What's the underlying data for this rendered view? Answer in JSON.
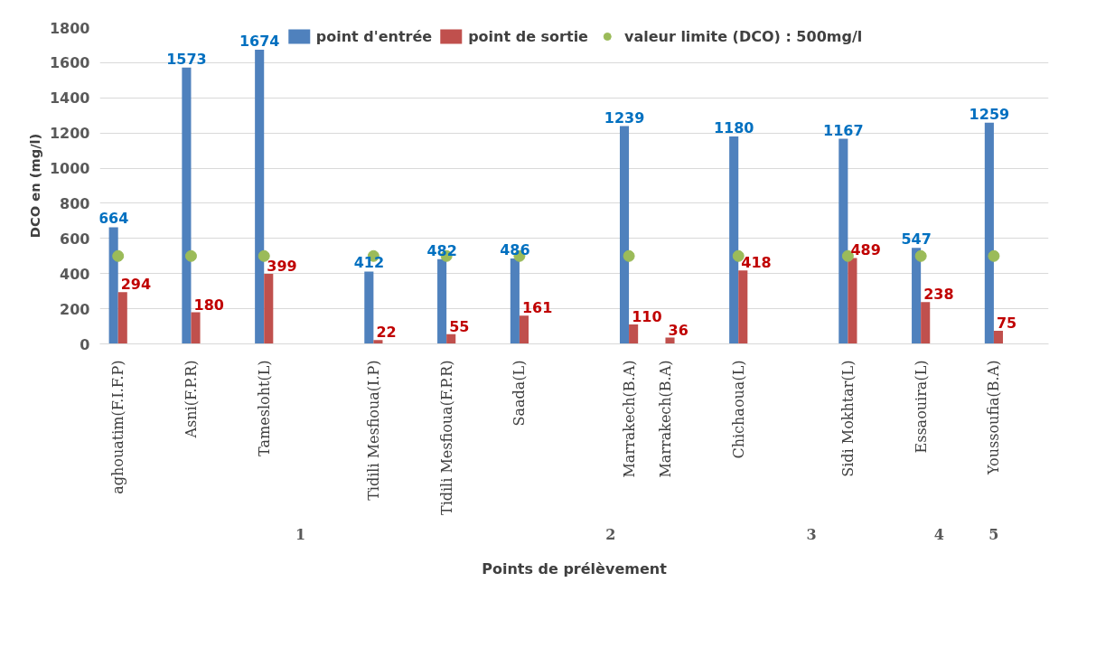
{
  "chart_data": {
    "type": "bar",
    "xlabel": "Points de prélèvement",
    "ylabel": "DCO en (mg/l)",
    "categories": [
      "aghouatim(F.I.F.P)",
      null,
      "Asni(F.P.R)",
      null,
      "Tamesloht(L)",
      null,
      null,
      "Tidili Mesfioua(I.P)",
      null,
      "Tidili Mesfioua(F.P.R)",
      null,
      "Saada(L)",
      null,
      null,
      "Marrakech(B.A)",
      "Marrakech(B.A)",
      null,
      "Chichaoua(L)",
      null,
      null,
      "Sidi Mokhtar(L)",
      null,
      "Essaouira(L)",
      null,
      "Youssoufia(B.A)",
      null
    ],
    "series": [
      {
        "name": "point d'entrée",
        "color": "#4f81bd",
        "values": [
          664,
          null,
          1573,
          null,
          1674,
          null,
          null,
          412,
          null,
          482,
          null,
          486,
          null,
          null,
          1239,
          null,
          null,
          1180,
          null,
          null,
          1167,
          null,
          547,
          null,
          1259,
          null
        ]
      },
      {
        "name": "point de sortie",
        "color": "#c0504d",
        "values": [
          294,
          null,
          180,
          null,
          399,
          null,
          null,
          22,
          null,
          55,
          null,
          161,
          null,
          null,
          110,
          36,
          null,
          418,
          null,
          null,
          489,
          null,
          238,
          null,
          75,
          null
        ]
      },
      {
        "name": "valeur limite (DCO) : 500mg/l",
        "type": "scatter",
        "marker": "circle",
        "color": "#9bbb59",
        "value_labels": [
          null,
          null,
          null,
          null,
          null,
          null,
          null,
          null,
          null,
          null,
          null,
          null,
          null,
          null,
          null,
          null,
          null,
          null,
          null,
          null,
          null,
          null,
          null,
          null,
          null,
          null
        ],
        "values": [
          500,
          null,
          500,
          null,
          500,
          null,
          null,
          500,
          null,
          500,
          null,
          500,
          null,
          null,
          500,
          null,
          null,
          500,
          null,
          null,
          500,
          null,
          500,
          null,
          500,
          null
        ]
      }
    ],
    "ylim": [
      0,
      1800
    ],
    "yticks": [
      0,
      200,
      400,
      600,
      800,
      1000,
      1200,
      1400,
      1600,
      1800
    ],
    "grid": "y",
    "legend": "top",
    "data_labels": true,
    "annotations": [
      "1",
      "2",
      "3",
      "4",
      "5"
    ]
  }
}
